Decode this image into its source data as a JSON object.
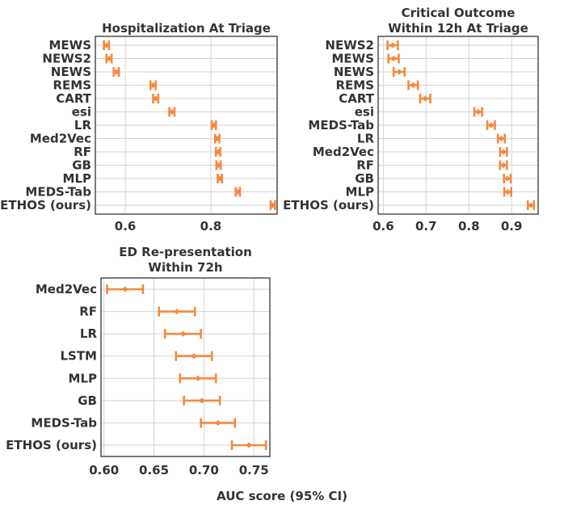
{
  "colors": {
    "accent": "#f4893f",
    "text": "#333333",
    "grid": "#d4d4d4",
    "frame": "#222222"
  },
  "shared_xlabel": "AUC score (95% CI)",
  "chart_data": [
    {
      "type": "errorbar",
      "title_lines": [
        "Hospitalization At Triage"
      ],
      "categories": [
        "MEWS",
        "NEWS2",
        "NEWS",
        "REMS",
        "CART",
        "esi",
        "LR",
        "Med2Vec",
        "RF",
        "GB",
        "MLP",
        "MEDS-Tab",
        "ETHOS (ours)"
      ],
      "values": [
        0.556,
        0.562,
        0.579,
        0.665,
        0.671,
        0.709,
        0.807,
        0.815,
        0.817,
        0.818,
        0.821,
        0.863,
        0.945
      ],
      "ci_low": [
        0.55,
        0.556,
        0.573,
        0.659,
        0.665,
        0.703,
        0.802,
        0.81,
        0.812,
        0.813,
        0.816,
        0.858,
        0.94
      ],
      "ci_high": [
        0.562,
        0.568,
        0.585,
        0.671,
        0.677,
        0.715,
        0.812,
        0.82,
        0.822,
        0.823,
        0.826,
        0.868,
        0.95
      ],
      "xlim": [
        0.53,
        0.955
      ],
      "xticks": [
        0.6,
        0.8
      ],
      "tick_labels": [
        "0.6",
        "0.8"
      ]
    },
    {
      "type": "errorbar",
      "title_lines": [
        "Critical Outcome",
        "Within 12h At Triage"
      ],
      "categories": [
        "NEWS2",
        "MEWS",
        "NEWS",
        "REMS",
        "CART",
        "esi",
        "MEDS-Tab",
        "LR",
        "Med2Vec",
        "RF",
        "GB",
        "MLP",
        "ETHOS (ours)"
      ],
      "values": [
        0.622,
        0.624,
        0.637,
        0.67,
        0.698,
        0.822,
        0.852,
        0.876,
        0.881,
        0.881,
        0.89,
        0.891,
        0.945
      ],
      "ci_low": [
        0.61,
        0.612,
        0.624,
        0.659,
        0.686,
        0.813,
        0.843,
        0.868,
        0.873,
        0.873,
        0.882,
        0.883,
        0.938
      ],
      "ci_high": [
        0.634,
        0.636,
        0.65,
        0.681,
        0.71,
        0.831,
        0.861,
        0.884,
        0.889,
        0.889,
        0.898,
        0.899,
        0.952
      ],
      "xlim": [
        0.588,
        0.962
      ],
      "xticks": [
        0.6,
        0.7,
        0.8,
        0.9
      ],
      "tick_labels": [
        "0.6",
        "0.7",
        "0.8",
        "0.9"
      ]
    },
    {
      "type": "errorbar",
      "title_lines": [
        "ED Re-presentation",
        "Within 72h"
      ],
      "categories": [
        "Med2Vec",
        "RF",
        "LR",
        "LSTM",
        "MLP",
        "GB",
        "MEDS-Tab",
        "ETHOS (ours)"
      ],
      "values": [
        0.621,
        0.673,
        0.679,
        0.69,
        0.694,
        0.698,
        0.714,
        0.745
      ],
      "ci_low": [
        0.603,
        0.655,
        0.661,
        0.672,
        0.676,
        0.68,
        0.697,
        0.728
      ],
      "ci_high": [
        0.639,
        0.691,
        0.697,
        0.708,
        0.712,
        0.716,
        0.731,
        0.762
      ],
      "xlim": [
        0.597,
        0.766
      ],
      "xticks": [
        0.6,
        0.65,
        0.7,
        0.75
      ],
      "tick_labels": [
        "0.60",
        "0.65",
        "0.70",
        "0.75"
      ]
    }
  ]
}
